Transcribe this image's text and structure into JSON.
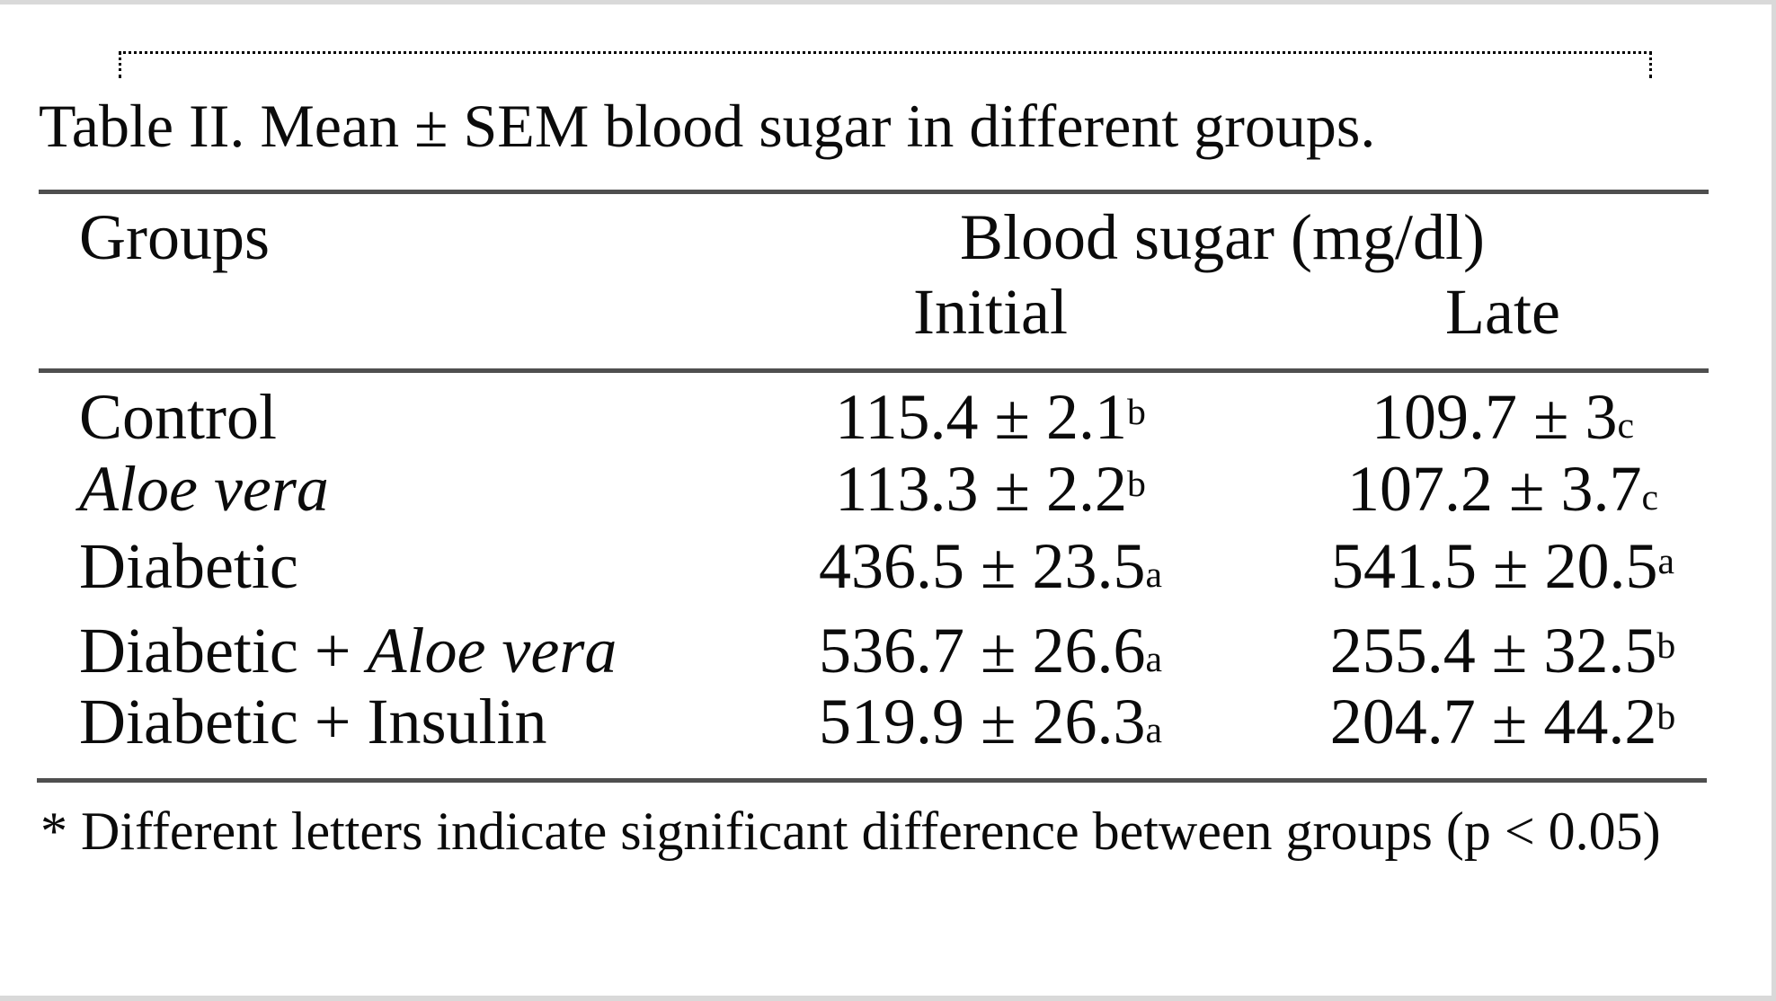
{
  "frame": {
    "border_color": "#d9d9d9"
  },
  "title": "Table II. Mean ± SEM blood sugar in different groups.",
  "table": {
    "row_header": "Groups",
    "span_header": "Blood sugar (mg/dl)",
    "columns": {
      "initial": "Initial",
      "late": "Late"
    },
    "rows": [
      {
        "label": {
          "roman": "Control",
          "italic": ""
        },
        "initial": {
          "value": "115.4 ± 2.1",
          "mark": "b",
          "mark_class": "mark-super"
        },
        "late": {
          "value": "109.7 ± 3",
          "mark": "c",
          "mark_class": "mark-small"
        }
      },
      {
        "label": {
          "roman": "",
          "italic": "Aloe vera"
        },
        "initial": {
          "value": "113.3 ± 2.2",
          "mark": "b",
          "mark_class": "mark-super"
        },
        "late": {
          "value": "107.2 ± 3.7",
          "mark": "c",
          "mark_class": "mark-small"
        }
      },
      {
        "label": {
          "roman": "Diabetic",
          "italic": ""
        },
        "initial": {
          "value": "436.5 ± 23.5",
          "mark": "a",
          "mark_class": "mark-small"
        },
        "late": {
          "value": "541.5 ± 20.5",
          "mark": "a",
          "mark_class": "mark-super"
        }
      },
      {
        "label": {
          "roman": "Diabetic + ",
          "italic": "Aloe vera"
        },
        "initial": {
          "value": "536.7 ± 26.6",
          "mark": "a",
          "mark_class": "mark-small"
        },
        "late": {
          "value": "255.4 ± 32.5",
          "mark": "b",
          "mark_class": "mark-super"
        }
      },
      {
        "label": {
          "roman": "Diabetic + Insulin",
          "italic": ""
        },
        "initial": {
          "value": "519.9 ± 26.3",
          "mark": "a",
          "mark_class": "mark-small"
        },
        "late": {
          "value": "204.7 ± 44.2",
          "mark": "b",
          "mark_class": "mark-super"
        }
      }
    ]
  },
  "footnote": "* Different letters indicate significant difference between groups (p < 0.05)"
}
